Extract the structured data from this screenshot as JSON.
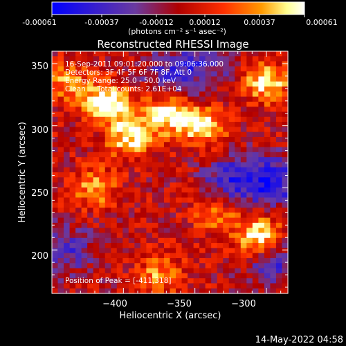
{
  "colorbar": {
    "tick_labels": [
      "-0.00061",
      "-0.00037",
      "-0.00012",
      "0.00012",
      "0.00037",
      "0.00061"
    ],
    "unit_label": "(photons cm⁻² s⁻¹ asec⁻²)"
  },
  "annotations": {
    "time_range": "16-Sep-2011 09:01:20.000 to 09:06:36.000",
    "detectors": "Detectors: 3F 4F 5F 6F 7F 8F, Att 0",
    "energy_range": "Energy Range: 25.0 - 50.0 keV",
    "clean_counts": "Clean     Total counts: 2.61E+04",
    "peak_position": "Position of Peak = [-411,318]"
  },
  "footer_date": "14-May-2022 04:58",
  "chart_data": {
    "type": "heatmap",
    "title": "Reconstructed RHESSI Image",
    "xlabel": "Heliocentric X (arcsec)",
    "ylabel": "Heliocentric Y (arcsec)",
    "xlim": [
      -450,
      -285
    ],
    "ylim": [
      165,
      360
    ],
    "x_ticks": [
      -400,
      -350,
      -300
    ],
    "y_ticks": [
      200,
      250,
      300,
      350
    ],
    "x_tick_labels": [
      "−400",
      "−350",
      "−300"
    ],
    "y_tick_labels": [
      "200",
      "250",
      "300",
      "350"
    ],
    "colormap": [
      "#0000ff",
      "#6a3aa0",
      "#b00000",
      "#ff3000",
      "#ff9a00",
      "#ffff90",
      "#ffffff"
    ],
    "value_range": [
      -0.00061,
      0.00061
    ],
    "grid_size": [
      40,
      48
    ],
    "hotspots": [
      {
        "x": -411,
        "y": 318,
        "level": 1.0
      },
      {
        "x": -370,
        "y": 310,
        "level": 0.85
      },
      {
        "x": -345,
        "y": 300,
        "level": 0.8
      },
      {
        "x": -395,
        "y": 290,
        "level": 0.75
      },
      {
        "x": -300,
        "y": 335,
        "level": 0.75
      },
      {
        "x": -305,
        "y": 210,
        "level": 0.9
      },
      {
        "x": -420,
        "y": 250,
        "level": 0.55
      },
      {
        "x": -440,
        "y": 335,
        "level": 0.5
      },
      {
        "x": -335,
        "y": 230,
        "level": 0.5
      },
      {
        "x": -375,
        "y": 180,
        "level": 0.5
      }
    ],
    "coldspots": [
      {
        "x": -325,
        "y": 255,
        "level": -0.7
      },
      {
        "x": -295,
        "y": 255,
        "level": -0.8
      },
      {
        "x": -365,
        "y": 340,
        "level": -0.6
      },
      {
        "x": -440,
        "y": 200,
        "level": -0.55
      },
      {
        "x": -295,
        "y": 190,
        "level": -0.6
      },
      {
        "x": -340,
        "y": 355,
        "level": -0.5
      }
    ]
  }
}
